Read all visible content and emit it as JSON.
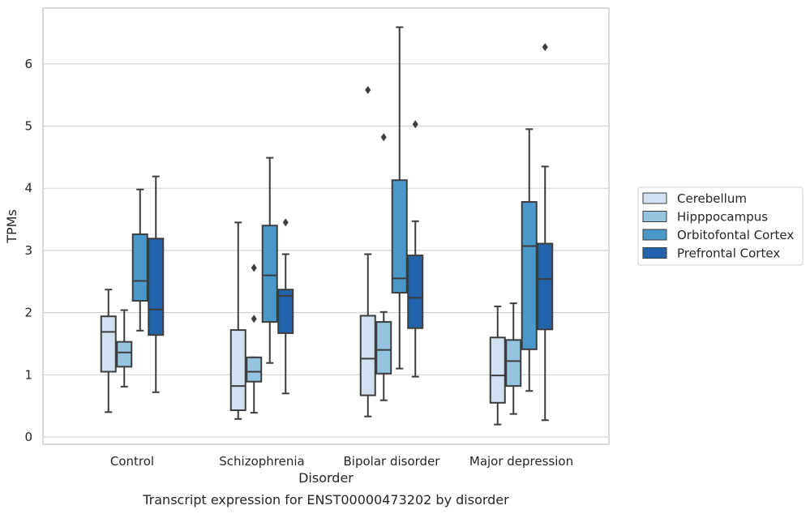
{
  "chart_data": {
    "type": "box",
    "caption": "Transcript expression for ENST00000473202 by disorder",
    "xlabel": "Disorder",
    "ylabel": "TPMs",
    "ylim": [
      -0.1,
      6.9
    ],
    "yticks": [
      0,
      1,
      2,
      3,
      4,
      5,
      6
    ],
    "grid": "horizontal",
    "legend_position": "right",
    "categories": [
      "Control",
      "Schizophrenia",
      "Bipolar disorder",
      "Major depression"
    ],
    "series": [
      {
        "name": "Cerebellum",
        "color": "#d0e1f2",
        "boxes": [
          {
            "whislo": 0.4,
            "q1": 1.05,
            "med": 1.69,
            "q3": 1.94,
            "whishi": 2.37,
            "fliers": []
          },
          {
            "whislo": 0.29,
            "q1": 0.43,
            "med": 0.82,
            "q3": 1.72,
            "whishi": 3.45,
            "fliers": []
          },
          {
            "whislo": 0.33,
            "q1": 0.67,
            "med": 1.26,
            "q3": 1.95,
            "whishi": 2.94,
            "fliers": [
              5.58
            ]
          },
          {
            "whislo": 0.2,
            "q1": 0.55,
            "med": 0.99,
            "q3": 1.6,
            "whishi": 2.1,
            "fliers": []
          }
        ]
      },
      {
        "name": "Hipppocampus",
        "color": "#94c4df",
        "boxes": [
          {
            "whislo": 0.81,
            "q1": 1.13,
            "med": 1.36,
            "q3": 1.53,
            "whishi": 2.04,
            "fliers": []
          },
          {
            "whislo": 0.39,
            "q1": 0.89,
            "med": 1.05,
            "q3": 1.28,
            "whishi": 1.28,
            "fliers": [
              2.72,
              1.9
            ]
          },
          {
            "whislo": 0.59,
            "q1": 1.02,
            "med": 1.4,
            "q3": 1.85,
            "whishi": 2.01,
            "fliers": [
              4.82
            ]
          },
          {
            "whislo": 0.37,
            "q1": 0.82,
            "med": 1.22,
            "q3": 1.56,
            "whishi": 2.15,
            "fliers": []
          }
        ]
      },
      {
        "name": "Orbitofontal Cortex",
        "color": "#4a98c9",
        "boxes": [
          {
            "whislo": 1.71,
            "q1": 2.19,
            "med": 2.51,
            "q3": 3.26,
            "whishi": 3.98,
            "fliers": []
          },
          {
            "whislo": 1.19,
            "q1": 1.85,
            "med": 2.6,
            "q3": 3.4,
            "whishi": 4.49,
            "fliers": []
          },
          {
            "whislo": 1.1,
            "q1": 2.32,
            "med": 2.55,
            "q3": 4.13,
            "whishi": 6.59,
            "fliers": []
          },
          {
            "whislo": 0.74,
            "q1": 1.41,
            "med": 3.07,
            "q3": 3.78,
            "whishi": 4.95,
            "fliers": []
          }
        ]
      },
      {
        "name": "Prefrontal Cortex",
        "color": "#2164ab",
        "boxes": [
          {
            "whislo": 0.72,
            "q1": 1.64,
            "med": 2.05,
            "q3": 3.19,
            "whishi": 4.19,
            "fliers": []
          },
          {
            "whislo": 0.7,
            "q1": 1.67,
            "med": 2.27,
            "q3": 2.37,
            "whishi": 2.94,
            "fliers": [
              3.45
            ]
          },
          {
            "whislo": 0.97,
            "q1": 1.75,
            "med": 2.24,
            "q3": 2.92,
            "whishi": 3.47,
            "fliers": [
              5.03
            ]
          },
          {
            "whislo": 0.27,
            "q1": 1.73,
            "med": 2.54,
            "q3": 3.11,
            "whishi": 4.35,
            "fliers": [
              6.27
            ]
          }
        ]
      }
    ]
  }
}
